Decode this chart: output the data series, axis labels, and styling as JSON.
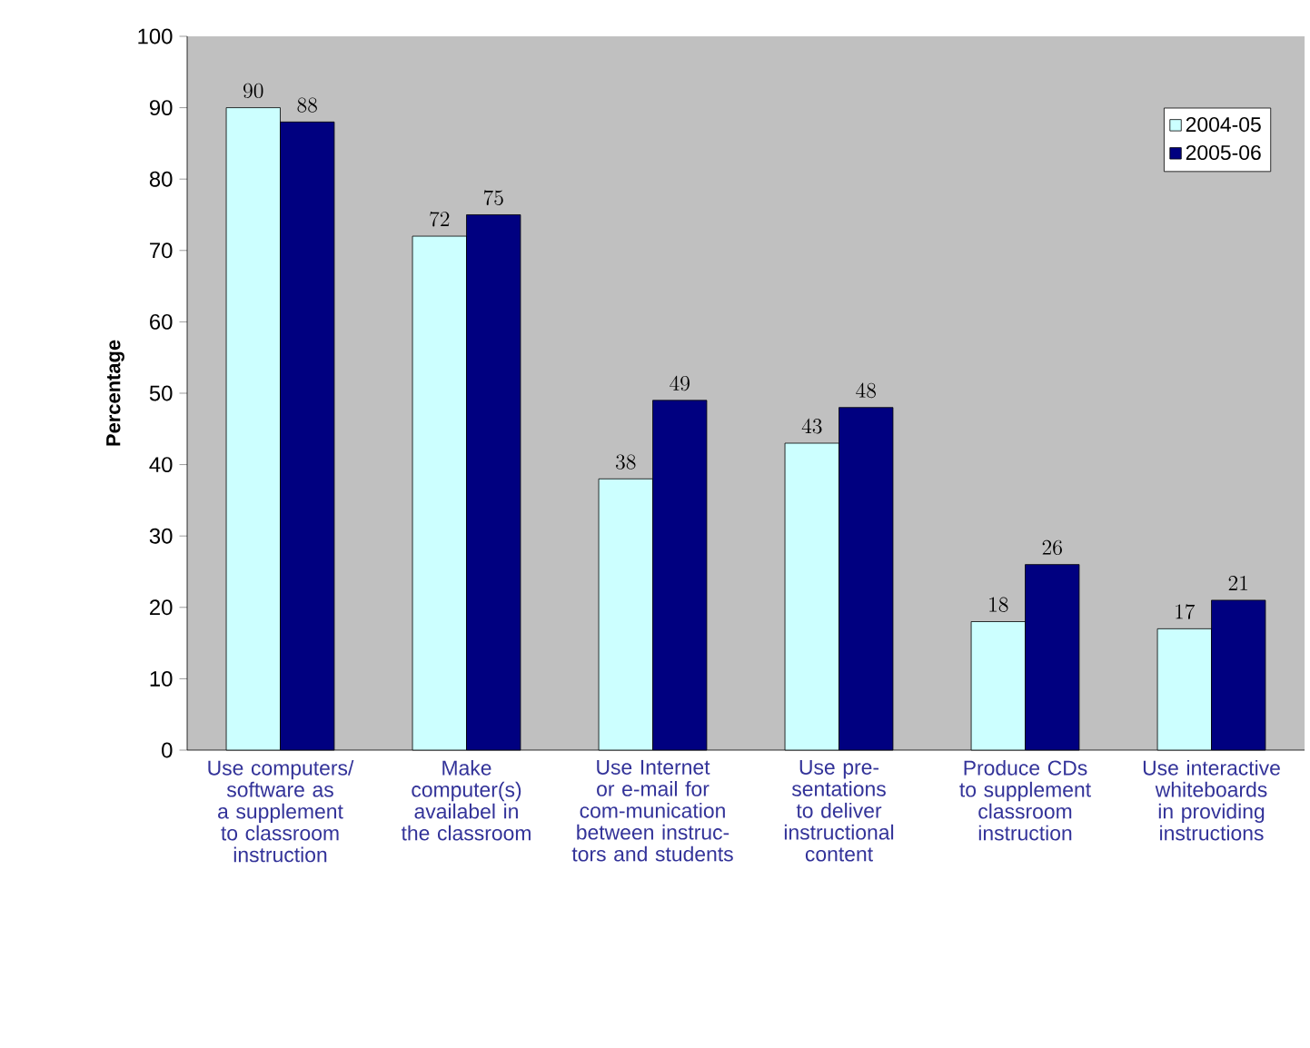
{
  "chart_data": {
    "type": "bar",
    "ylabel": "Percentage",
    "categories": [
      "Use computers/ software as a supplement to classroom instruction",
      "Make computer(s) availabel in the classroom",
      "Use Internet or e-mail for com-munication between instruc-tors and students",
      "Use pre-sentations to deliver instructional content",
      "Produce CDs to supplement classroom instruction",
      "Use interactive whiteboards in providing instructions"
    ],
    "series": [
      {
        "name": "2004-05",
        "color": "#ccffff",
        "values": [
          90,
          72,
          38,
          43,
          18,
          17
        ]
      },
      {
        "name": "2005-06",
        "color": "#000080",
        "values": [
          88,
          75,
          49,
          48,
          26,
          21
        ]
      }
    ],
    "ylim": [
      0,
      100
    ],
    "yticks": [
      0,
      10,
      20,
      30,
      40,
      50,
      60,
      70,
      80,
      90,
      100
    ],
    "grid": false,
    "legend": "top right",
    "data_labels": true
  }
}
